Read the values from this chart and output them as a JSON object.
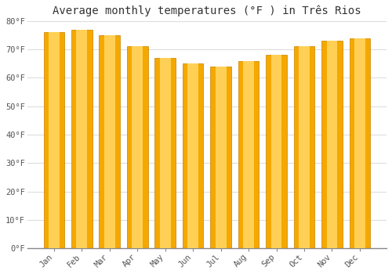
{
  "title": "Average monthly temperatures (°F ) in Três Rios",
  "months": [
    "Jan",
    "Feb",
    "Mar",
    "Apr",
    "May",
    "Jun",
    "Jul",
    "Aug",
    "Sep",
    "Oct",
    "Nov",
    "Dec"
  ],
  "values": [
    76,
    77,
    75,
    71,
    67,
    65,
    64,
    66,
    68,
    71,
    73,
    74
  ],
  "bar_color_outer": "#F5A800",
  "bar_color_inner": "#FFD055",
  "ylim": [
    0,
    80
  ],
  "yticks": [
    0,
    10,
    20,
    30,
    40,
    50,
    60,
    70,
    80
  ],
  "ytick_labels": [
    "0°F",
    "10°F",
    "20°F",
    "30°F",
    "40°F",
    "50°F",
    "60°F",
    "70°F",
    "80°F"
  ],
  "background_color": "#FFFFFF",
  "grid_color": "#DDDDDD",
  "title_fontsize": 10,
  "tick_fontsize": 7.5,
  "bar_width": 0.75
}
